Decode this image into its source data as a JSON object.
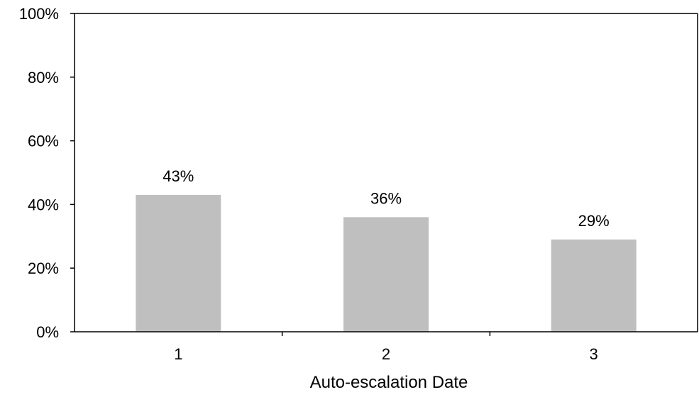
{
  "chart_data": {
    "type": "bar",
    "title": "",
    "xlabel": "Auto-escalation Date",
    "ylabel": "",
    "categories": [
      "1",
      "2",
      "3"
    ],
    "values": [
      43,
      36,
      29
    ],
    "value_labels": [
      "43%",
      "36%",
      "29%"
    ],
    "ylim": [
      0,
      100
    ],
    "yticks": [
      0,
      20,
      40,
      60,
      80,
      100
    ],
    "ytick_labels": [
      "0%",
      "20%",
      "40%",
      "60%",
      "80%",
      "100%"
    ],
    "grid": false,
    "legend": "none",
    "colors": {
      "bar": "#bfbfbf",
      "axis": "#000000",
      "frame": "#000000"
    }
  }
}
